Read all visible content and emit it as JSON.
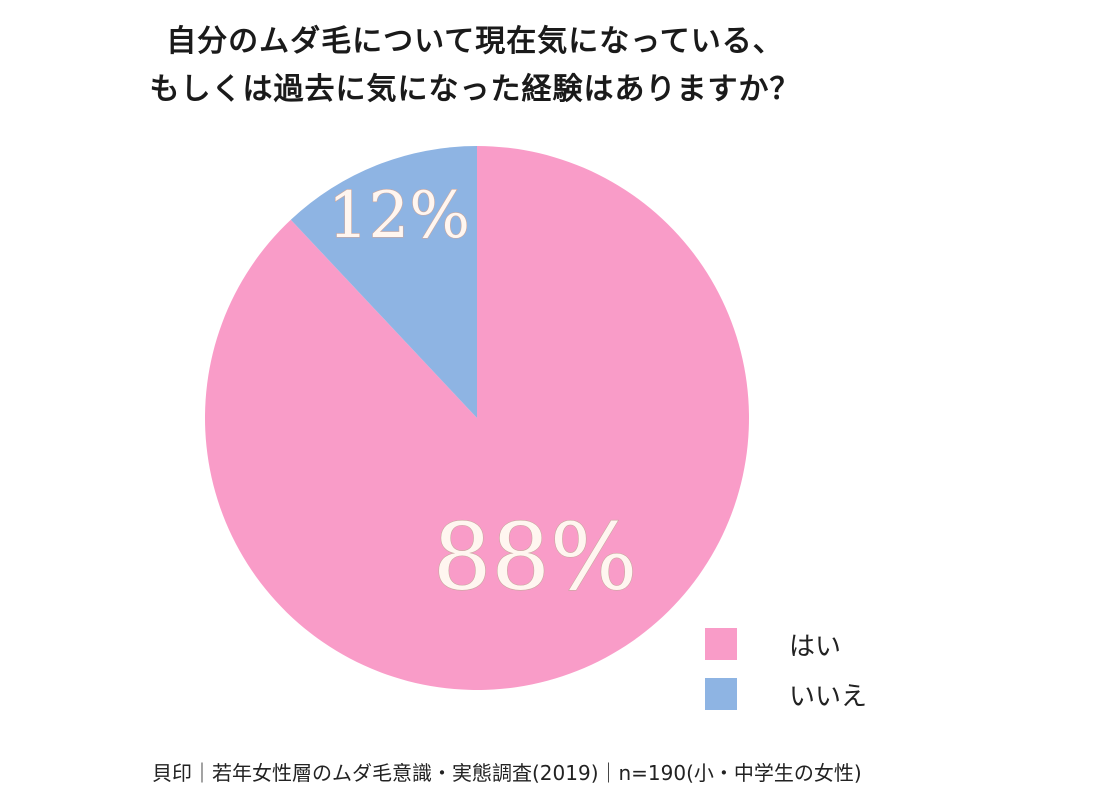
{
  "chart_data": {
    "type": "pie",
    "title": [
      "自分のムダ毛について現在気になっている、",
      "もしくは過去に気になった経験はありますか？"
    ],
    "categories": [
      "はい",
      "いいえ"
    ],
    "values": [
      88,
      12
    ],
    "data_labels": [
      "88%",
      "12%"
    ],
    "colors": [
      "#f99cc8",
      "#8eb4e3"
    ],
    "legend_position": "bottom-right",
    "start_angle": "top",
    "direction": "clockwise"
  },
  "source": "貝印｜若年女性層のムダ毛意識・実態調査(2019)｜n=190(小・中学生の女性)"
}
